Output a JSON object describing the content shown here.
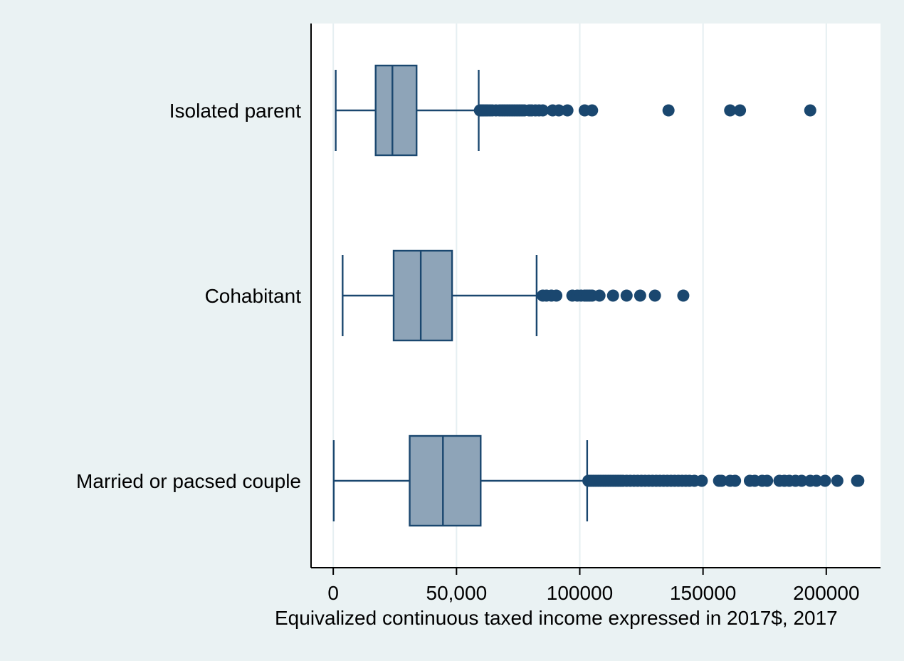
{
  "colors": {
    "background": "#eaf2f3",
    "plot_background": "#ffffff",
    "box_fill": "#8ea4b8",
    "box_stroke": "#1a476f",
    "outlier": "#1a476f",
    "grid": "#e6eff2"
  },
  "chart_data": {
    "type": "box",
    "orientation": "horizontal",
    "xlabel": "Equivalized continuous taxed income expressed in 2017$, 2017",
    "ylabel": "",
    "xlim": [
      -9000,
      222000
    ],
    "xticks": [
      0,
      50000,
      100000,
      150000,
      200000
    ],
    "xtick_labels": [
      "0",
      "50,000",
      "100000",
      "150000",
      "200000"
    ],
    "grid": true,
    "legend": "none",
    "groups": [
      {
        "label": "Isolated parent",
        "whisker_low": 1000,
        "q1": 17200,
        "median": 24000,
        "q3": 33800,
        "whisker_high": 59000,
        "outliers": [
          59500,
          60000,
          60500,
          61000,
          61800,
          62500,
          63500,
          64500,
          66000,
          67500,
          68500,
          69500,
          70500,
          71500,
          72500,
          73500,
          74500,
          75500,
          76500,
          77500,
          79500,
          80500,
          82000,
          83500,
          85000,
          89000,
          91500,
          95000,
          102000,
          105000,
          136000,
          161000,
          165000,
          193500
        ]
      },
      {
        "label": "Cohabitant",
        "whisker_low": 3800,
        "q1": 24500,
        "median": 35500,
        "q3": 48200,
        "whisker_high": 82500,
        "outliers": [
          85000,
          86500,
          88500,
          90500,
          97000,
          99000,
          100500,
          102000,
          103000,
          104000,
          105000,
          108000,
          113500,
          119000,
          124500,
          130500,
          142000
        ]
      },
      {
        "label": "Married or pacsed couple",
        "whisker_low": 200,
        "q1": 31000,
        "median": 44500,
        "q3": 59800,
        "whisker_high": 103000,
        "outliers": [
          103500,
          104500,
          105500,
          106500,
          107500,
          108500,
          109500,
          110500,
          111500,
          112500,
          113500,
          114500,
          115500,
          116500,
          117500,
          119000,
          120500,
          122000,
          123500,
          125000,
          126500,
          128000,
          129500,
          131000,
          132500,
          134000,
          135500,
          137000,
          138500,
          140000,
          141500,
          143000,
          144500,
          146500,
          149500,
          156500,
          157500,
          161000,
          163000,
          169000,
          171000,
          174000,
          176000,
          181000,
          183000,
          185000,
          187500,
          190000,
          193500,
          196000,
          199500,
          204500,
          212500,
          213000
        ]
      }
    ]
  }
}
